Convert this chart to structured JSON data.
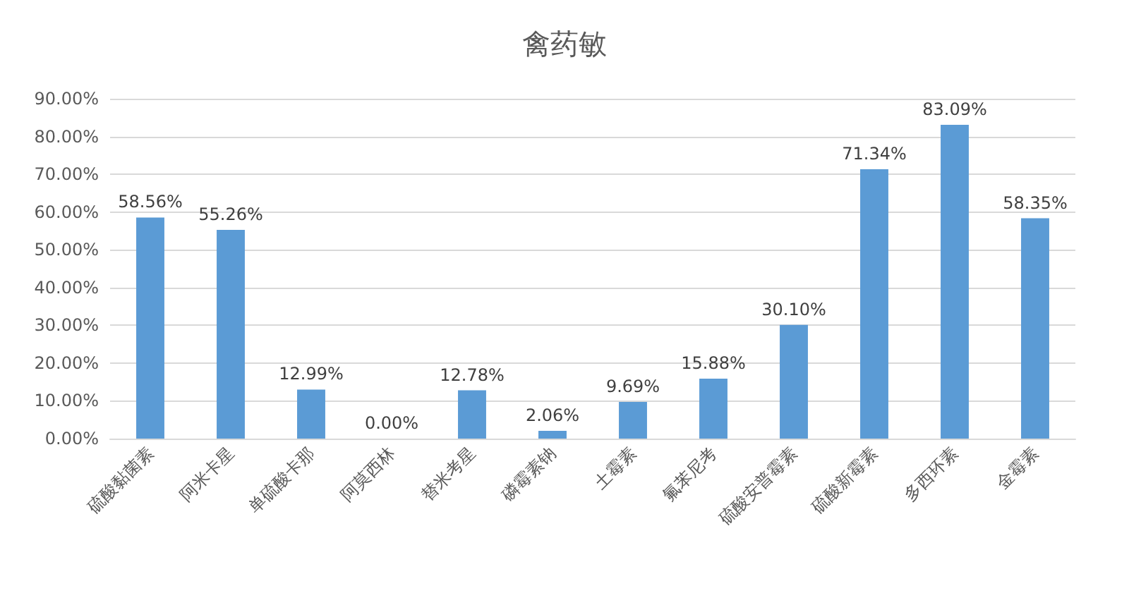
{
  "chart_data": {
    "type": "bar",
    "title": "禽药敏",
    "categories": [
      "硫酸黏菌素",
      "阿米卡星",
      "单硫酸卡那",
      "阿莫西林",
      "替米考星",
      "磷霉素钠",
      "土霉素",
      "氟苯尼考",
      "硫酸安普霉素",
      "硫酸新霉素",
      "多西环素",
      "金霉素"
    ],
    "values": [
      58.56,
      55.26,
      12.99,
      0,
      12.78,
      2.06,
      9.69,
      15.88,
      30.1,
      71.34,
      83.09,
      58.35
    ],
    "value_labels": [
      "58.56%",
      "55.26%",
      "12.99%",
      "0.00%",
      "12.78%",
      "2.06%",
      "9.69%",
      "15.88%",
      "30.10%",
      "71.34%",
      "83.09%",
      "58.35%"
    ],
    "color": "#5b9bd5",
    "ylim": [
      0,
      90
    ],
    "yticks": [
      {
        "value": 0,
        "label": "0.00%"
      },
      {
        "value": 10,
        "label": "10.00%"
      },
      {
        "value": 20,
        "label": "20.00%"
      },
      {
        "value": 30,
        "label": "30.00%"
      },
      {
        "value": 40,
        "label": "40.00%"
      },
      {
        "value": 50,
        "label": "50.00%"
      },
      {
        "value": 60,
        "label": "60.00%"
      },
      {
        "value": 70,
        "label": "70.00%"
      },
      {
        "value": 80,
        "label": "80.00%"
      },
      {
        "value": 90,
        "label": "90.00%"
      }
    ],
    "grid": "y"
  }
}
